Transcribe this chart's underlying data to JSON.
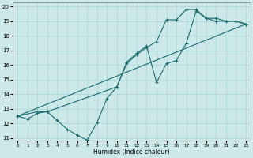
{
  "xlabel": "Humidex (Indice chaleur)",
  "bg_color": "#cce8e8",
  "line_color": "#1a6b6b",
  "grid_color": "#aad4d4",
  "xlim": [
    -0.5,
    23.5
  ],
  "ylim": [
    10.8,
    20.3
  ],
  "xticks": [
    0,
    1,
    2,
    3,
    4,
    5,
    6,
    7,
    8,
    9,
    10,
    11,
    12,
    13,
    14,
    15,
    16,
    17,
    18,
    19,
    20,
    21,
    22,
    23
  ],
  "yticks": [
    11,
    12,
    13,
    14,
    15,
    16,
    17,
    18,
    19,
    20
  ],
  "line1_x": [
    0,
    1,
    2,
    3,
    4,
    5,
    6,
    7,
    8,
    9,
    10,
    11,
    12,
    13,
    14,
    15,
    16,
    17,
    18,
    19,
    20,
    21,
    22,
    23
  ],
  "line1_y": [
    12.5,
    12.3,
    12.7,
    12.8,
    12.2,
    11.6,
    11.2,
    10.85,
    12.05,
    13.7,
    14.5,
    16.1,
    16.7,
    17.2,
    17.6,
    19.1,
    19.1,
    19.8,
    19.8,
    19.2,
    19.0,
    19.0,
    19.0,
    18.8
  ],
  "line2_x": [
    0,
    23
  ],
  "line2_y": [
    12.5,
    18.8
  ],
  "line3_x": [
    0,
    2,
    3,
    10,
    11,
    12,
    13,
    14,
    15,
    16,
    17,
    18,
    19,
    20,
    21,
    22,
    23
  ],
  "line3_y": [
    12.5,
    12.8,
    12.8,
    14.5,
    16.2,
    16.8,
    17.3,
    14.8,
    16.1,
    16.3,
    17.5,
    19.7,
    19.2,
    19.2,
    19.0,
    19.0,
    18.8
  ]
}
